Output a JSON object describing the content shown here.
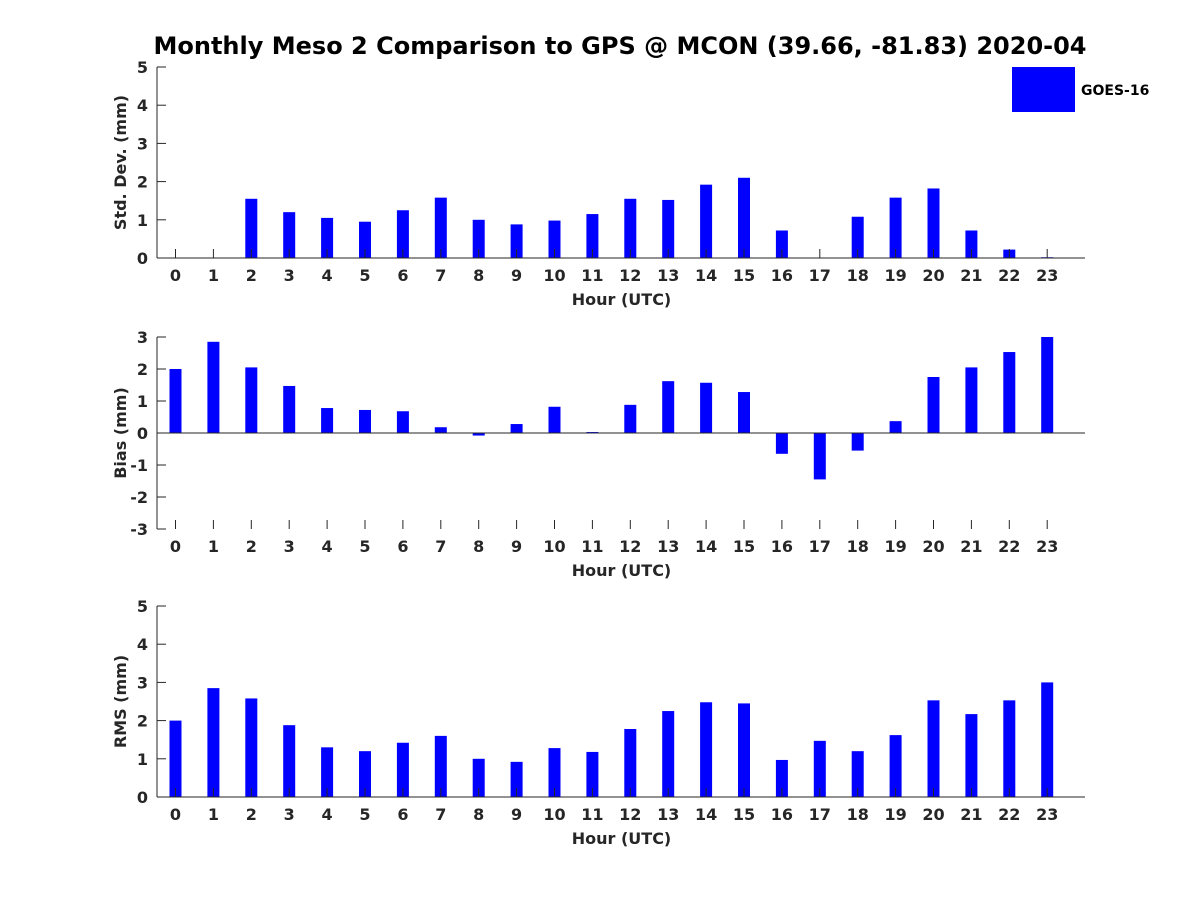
{
  "title": "Monthly Meso 2 Comparison to GPS @ MCON (39.66, -81.83) 2020-04",
  "legend": {
    "label": "GOES-16",
    "position": "top-right",
    "color": "#0000ff"
  },
  "chart_data": [
    {
      "type": "bar",
      "xlabel": "Hour (UTC)",
      "ylabel": "Std. Dev. (mm)",
      "ylim": [
        0,
        5
      ],
      "yticks": [
        "0",
        "1",
        "2",
        "3",
        "4",
        "5"
      ],
      "categories": [
        "0",
        "1",
        "2",
        "3",
        "4",
        "5",
        "6",
        "7",
        "8",
        "9",
        "10",
        "11",
        "12",
        "13",
        "14",
        "15",
        "16",
        "17",
        "18",
        "19",
        "20",
        "21",
        "22",
        "23"
      ],
      "series": [
        {
          "name": "GOES-16",
          "color": "#0000ff",
          "values": [
            0,
            0,
            1.55,
            1.2,
            1.05,
            0.95,
            1.25,
            1.58,
            1.0,
            0.88,
            0.98,
            1.15,
            1.55,
            1.52,
            1.92,
            2.1,
            0.72,
            0,
            1.08,
            1.58,
            1.82,
            0.72,
            0.22,
            0.02
          ]
        }
      ]
    },
    {
      "type": "bar",
      "xlabel": "Hour (UTC)",
      "ylabel": "Bias (mm)",
      "ylim": [
        -3,
        3
      ],
      "yticks": [
        "-3",
        "-2",
        "-1",
        "0",
        "1",
        "2",
        "3"
      ],
      "categories": [
        "0",
        "1",
        "2",
        "3",
        "4",
        "5",
        "6",
        "7",
        "8",
        "9",
        "10",
        "11",
        "12",
        "13",
        "14",
        "15",
        "16",
        "17",
        "18",
        "19",
        "20",
        "21",
        "22",
        "23"
      ],
      "series": [
        {
          "name": "GOES-16",
          "color": "#0000ff",
          "values": [
            2.0,
            2.85,
            2.05,
            1.47,
            0.78,
            0.72,
            0.68,
            0.18,
            -0.08,
            0.28,
            0.82,
            0.03,
            0.88,
            1.62,
            1.57,
            1.28,
            -0.65,
            -1.45,
            -0.55,
            0.37,
            1.75,
            2.05,
            2.53,
            3.0
          ]
        }
      ]
    },
    {
      "type": "bar",
      "xlabel": "Hour (UTC)",
      "ylabel": "RMS (mm)",
      "ylim": [
        0,
        5
      ],
      "yticks": [
        "0",
        "1",
        "2",
        "3",
        "4",
        "5"
      ],
      "categories": [
        "0",
        "1",
        "2",
        "3",
        "4",
        "5",
        "6",
        "7",
        "8",
        "9",
        "10",
        "11",
        "12",
        "13",
        "14",
        "15",
        "16",
        "17",
        "18",
        "19",
        "20",
        "21",
        "22",
        "23"
      ],
      "series": [
        {
          "name": "GOES-16",
          "color": "#0000ff",
          "values": [
            2.0,
            2.85,
            2.58,
            1.88,
            1.3,
            1.2,
            1.42,
            1.6,
            1.0,
            0.92,
            1.28,
            1.18,
            1.78,
            2.25,
            2.48,
            2.45,
            0.97,
            1.47,
            1.2,
            1.62,
            2.53,
            2.17,
            2.53,
            3.0
          ]
        }
      ]
    }
  ]
}
